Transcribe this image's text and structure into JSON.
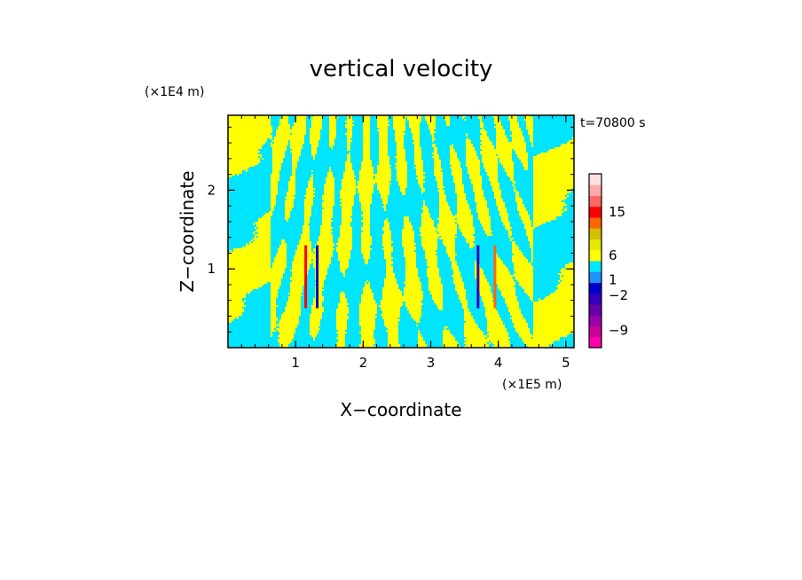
{
  "chart_data": {
    "type": "heatmap",
    "title": "vertical velocity",
    "xlabel": "X−coordinate",
    "ylabel": "Z−coordinate",
    "x_unit": "(×1E5 m)",
    "y_unit": "(×1E4 m)",
    "time_label": "t=70800 s",
    "xlim": [
      0,
      5.12
    ],
    "ylim": [
      0,
      2.95
    ],
    "x_ticks": [
      1,
      2,
      3,
      4,
      5
    ],
    "x_tick_labels": [
      "1",
      "2",
      "3",
      "4",
      "5"
    ],
    "y_ticks": [
      1,
      2
    ],
    "y_tick_labels": [
      "1",
      "2"
    ],
    "colorbar": {
      "colors": [
        "#ff00aa",
        "#cc0099",
        "#9900aa",
        "#6600aa",
        "#3300bb",
        "#0000cc",
        "#1e90ff",
        "#00e5ff",
        "#ffff00",
        "#e6e600",
        "#d4c000",
        "#ff6600",
        "#ff0000",
        "#ff6666",
        "#ffaaaa",
        "#ffe0e0"
      ],
      "tick_labels": [
        "15",
        "6",
        "1",
        "−2",
        "−9"
      ],
      "tick_values": [
        15,
        6,
        1,
        -2,
        -9
      ]
    },
    "field_summary": {
      "dominant_colors": [
        "#00e5ff",
        "#ffff00"
      ],
      "strong_updraft_downdraft_x": [
        1.15,
        1.32,
        3.7,
        3.95
      ],
      "strong_feature_z_range": [
        0.5,
        1.3
      ]
    }
  }
}
